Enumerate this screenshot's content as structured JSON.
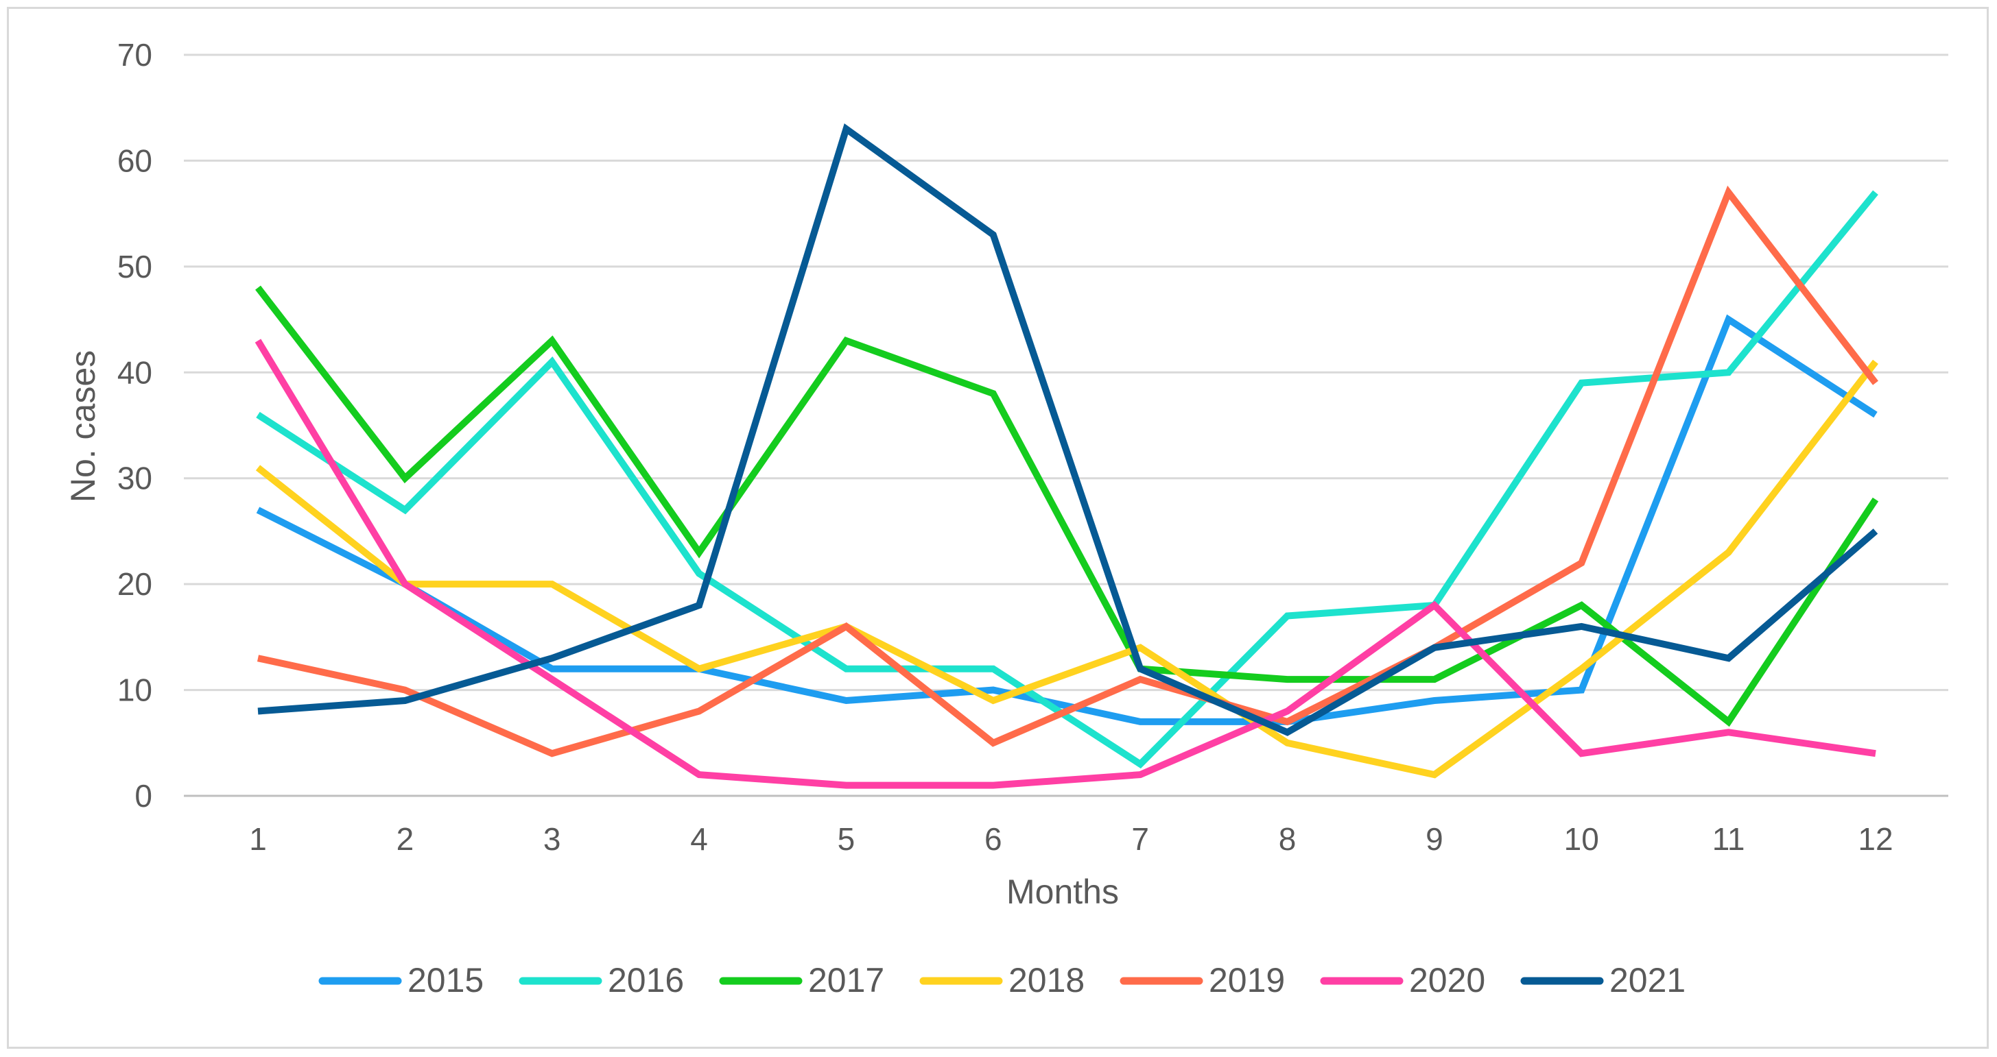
{
  "chart_data": {
    "type": "line",
    "title": "",
    "xlabel": "Months",
    "ylabel": "No. cases",
    "x": [
      1,
      2,
      3,
      4,
      5,
      6,
      7,
      8,
      9,
      10,
      11,
      12
    ],
    "ylim": [
      0,
      70
    ],
    "yticks": [
      0,
      10,
      20,
      30,
      40,
      50,
      60,
      70
    ],
    "grid": true,
    "legend_position": "bottom",
    "series": [
      {
        "name": "2015",
        "color": "#1E9DF0",
        "values": [
          27,
          20,
          12,
          12,
          9,
          10,
          7,
          7,
          9,
          10,
          45,
          36
        ]
      },
      {
        "name": "2016",
        "color": "#1DE2CD",
        "values": [
          36,
          27,
          41,
          21,
          12,
          12,
          3,
          17,
          18,
          39,
          40,
          57
        ]
      },
      {
        "name": "2017",
        "color": "#14CC1E",
        "values": [
          48,
          30,
          43,
          23,
          43,
          38,
          12,
          11,
          11,
          18,
          7,
          28
        ]
      },
      {
        "name": "2018",
        "color": "#FFD21F",
        "values": [
          31,
          20,
          20,
          12,
          16,
          9,
          14,
          5,
          2,
          12,
          23,
          41
        ]
      },
      {
        "name": "2019",
        "color": "#FF6B4A",
        "values": [
          13,
          10,
          4,
          8,
          16,
          5,
          11,
          7,
          14,
          22,
          57,
          39
        ]
      },
      {
        "name": "2020",
        "color": "#FF3FA4",
        "values": [
          43,
          20,
          11,
          2,
          1,
          1,
          2,
          8,
          18,
          4,
          6,
          4
        ]
      },
      {
        "name": "2021",
        "color": "#065A94",
        "values": [
          8,
          9,
          13,
          18,
          63,
          53,
          12,
          6,
          14,
          16,
          13,
          25
        ]
      }
    ]
  }
}
